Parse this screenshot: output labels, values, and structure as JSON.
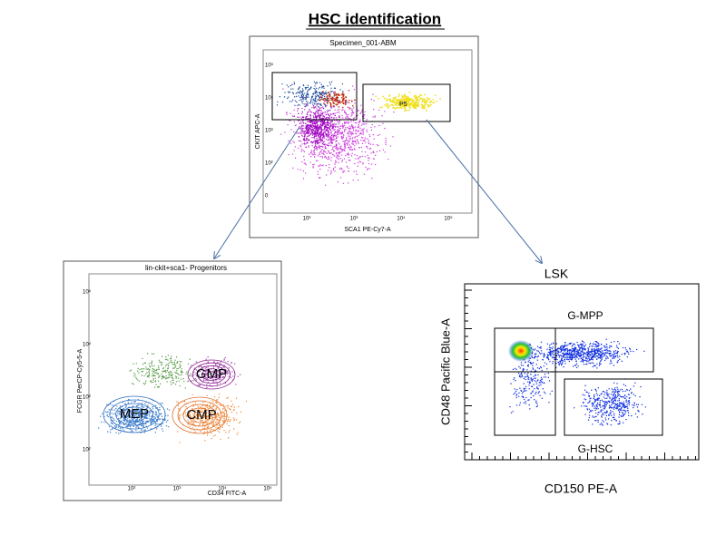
{
  "title": "HSC identification",
  "top_plot": {
    "title": "Specimen_001-ABM",
    "y_label": "CKIT APC-A",
    "x_label": "SCA1 PE-Cy7-A",
    "gate": "P5",
    "x_tick_labels": [
      "10²",
      "10³",
      "10⁴",
      "10⁵"
    ],
    "y_tick_labels": [
      "10⁵",
      "10⁴",
      "10³",
      "10²",
      "0"
    ]
  },
  "left_plot": {
    "title": "lin-ckit+sca1- Progenitors",
    "y_label": "FCGR PerCP-Cy5-5-A",
    "x_label": "CD34 FITC-A",
    "populations": [
      "GMP",
      "MEP",
      "CMP"
    ],
    "x_tick_labels": [
      "10²",
      "10³",
      "10⁴",
      "10⁵"
    ],
    "y_tick_labels": [
      "10⁵",
      "10⁴",
      "10³",
      "10²"
    ]
  },
  "right_plot": {
    "title": "LSK",
    "y_label": "CD48 Pacific Blue-A",
    "x_label": "CD150 PE-A",
    "gates": [
      "G-MPP",
      "G-HSC"
    ]
  }
}
